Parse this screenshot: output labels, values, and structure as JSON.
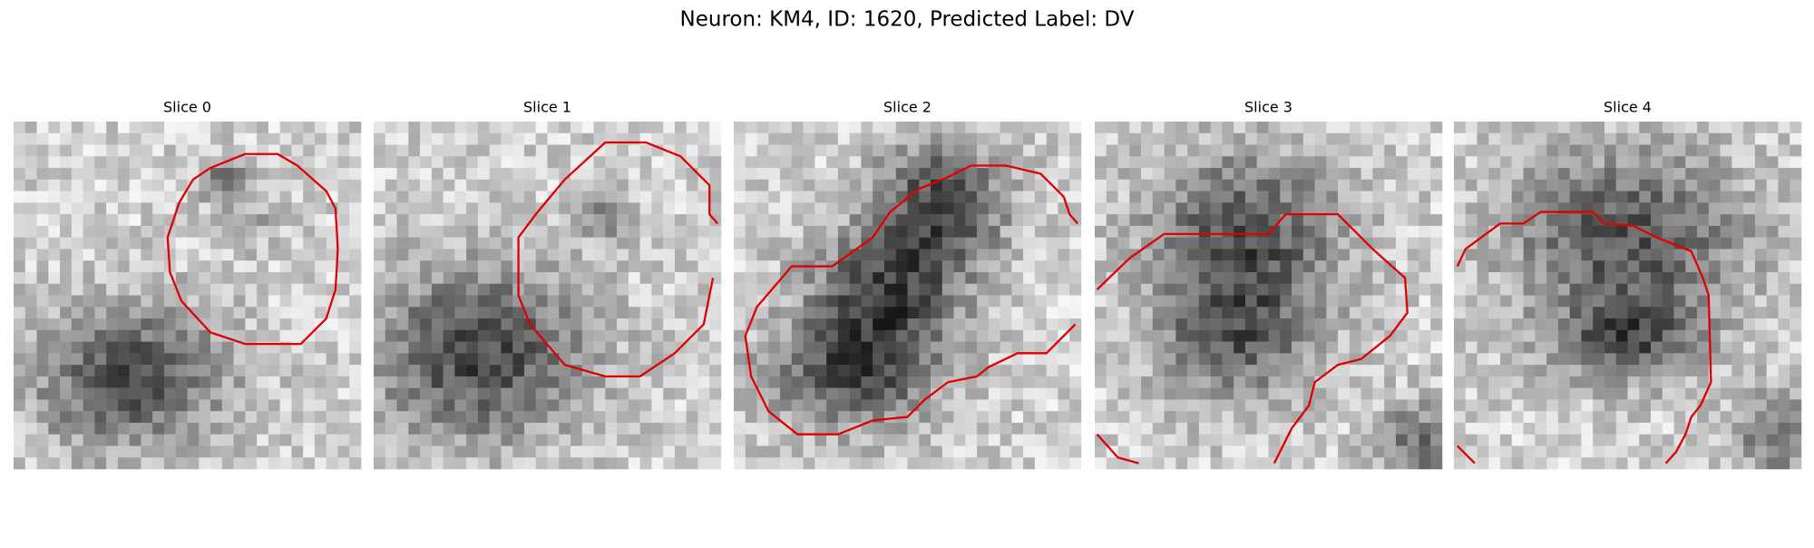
{
  "title": "Neuron: KM4, ID: 1620, Predicted Label: DV",
  "panels": [
    {
      "title": "Slice 0"
    },
    {
      "title": "Slice 1"
    },
    {
      "title": "Slice 2"
    },
    {
      "title": "Slice 3"
    },
    {
      "title": "Slice 4"
    }
  ]
}
